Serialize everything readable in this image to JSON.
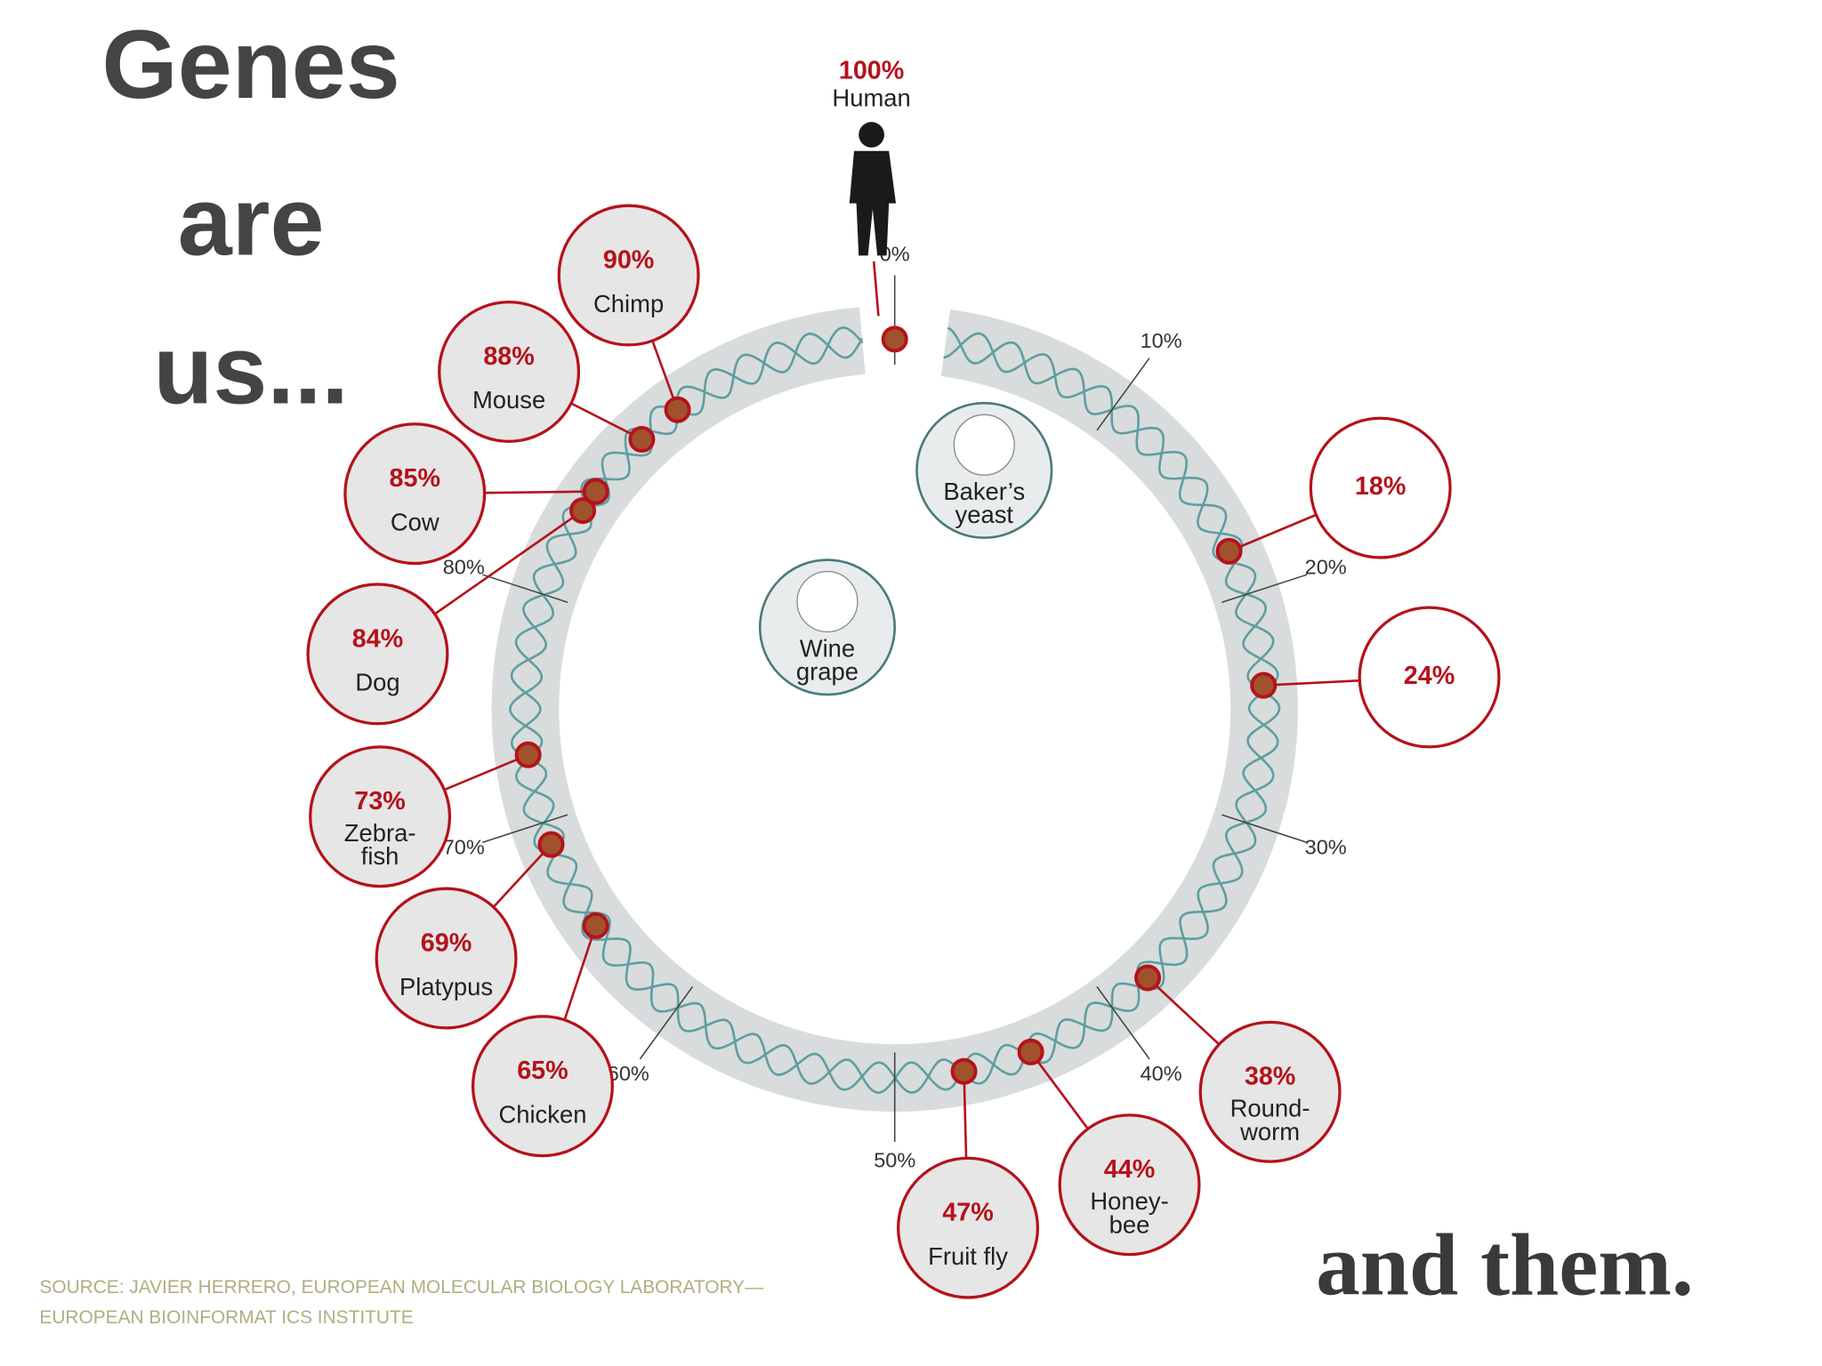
{
  "title": [
    "Genes",
    "are",
    "us..."
  ],
  "subtitle": "and them.",
  "source": [
    "SOURCE: JAVIER HERRERO, EUROPEAN MOLECULAR BIOLOGY LABORATORY—",
    "EUROPEAN BIOINFORMAT ICS INSTITUTE"
  ],
  "ring_ticks": [
    {
      "value": 0,
      "label": "0%"
    },
    {
      "value": 10,
      "label": "10%"
    },
    {
      "value": 20,
      "label": "20%"
    },
    {
      "value": 30,
      "label": "30%"
    },
    {
      "value": 40,
      "label": "40%"
    },
    {
      "value": 50,
      "label": "50%"
    },
    {
      "value": 60,
      "label": "60%"
    },
    {
      "value": 70,
      "label": "70%"
    },
    {
      "value": 80,
      "label": "80%"
    }
  ],
  "human": {
    "percent": {
      "value": 100,
      "label": "100%"
    },
    "label": "Human"
  },
  "center_labels": [
    {
      "label": "Baker’s\nyeast"
    },
    {
      "label": "Wine\ngrape"
    }
  ],
  "nodes": [
    {
      "percent": {
        "value": 90,
        "label": "90%"
      },
      "label": "Chimp"
    },
    {
      "percent": {
        "value": 88,
        "label": "88%"
      },
      "label": "Mouse"
    },
    {
      "percent": {
        "value": 85,
        "label": "85%"
      },
      "label": "Cow"
    },
    {
      "percent": {
        "value": 84,
        "label": "84%"
      },
      "label": "Dog"
    },
    {
      "percent": {
        "value": 73,
        "label": "73%"
      },
      "label": "Zebra-\nfish"
    },
    {
      "percent": {
        "value": 69,
        "label": "69%"
      },
      "label": "Platypus"
    },
    {
      "percent": {
        "value": 65,
        "label": "65%"
      },
      "label": "Chicken"
    },
    {
      "percent": {
        "value": 47,
        "label": "47%"
      },
      "label": "Fruit fly"
    },
    {
      "percent": {
        "value": 44,
        "label": "44%"
      },
      "label": "Honey-\nbee"
    },
    {
      "percent": {
        "value": 38,
        "label": "38%"
      },
      "label": "Round-\nworm"
    },
    {
      "percent": {
        "value": 18,
        "label": "18%"
      }
    },
    {
      "percent": {
        "value": 24,
        "label": "24%"
      }
    }
  ]
}
